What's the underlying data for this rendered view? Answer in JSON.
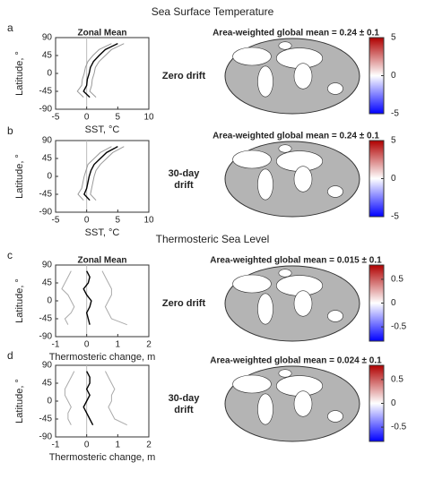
{
  "chart_data": [
    {
      "type": "line",
      "panel": "a",
      "supertitle": "Sea Surface Temperature",
      "title": "Zonal Mean",
      "xlabel": "SST, °C",
      "ylabel": "Latitude, °",
      "latitudes": [
        -60,
        -45,
        -30,
        -15,
        0,
        15,
        30,
        45,
        60,
        75
      ],
      "xlim": [
        -5,
        10
      ],
      "xticks": [
        -5,
        0,
        5,
        10
      ],
      "ylim": [
        -90,
        90
      ],
      "yticks": [
        90,
        45,
        0,
        -45,
        -90
      ],
      "series": [
        {
          "color": "#999999",
          "values": [
            1.5,
            0.5,
            0.8,
            0.9,
            1.2,
            1.4,
            2,
            3,
            4,
            6
          ]
        },
        {
          "color": "#000000",
          "values": [
            0.5,
            -0.5,
            0,
            0.1,
            0.4,
            0.6,
            1.1,
            2,
            3,
            5
          ]
        },
        {
          "color": "#999999",
          "values": [
            -0.5,
            -1.5,
            -0.8,
            -0.7,
            -0.4,
            -0.2,
            0.2,
            1,
            2,
            4
          ]
        }
      ]
    },
    {
      "type": "map",
      "title": "Area-weighted global mean = 0.24 ± 0.1",
      "label": [
        "Zero drift"
      ],
      "clim": [
        -5,
        5
      ],
      "cticks": [
        5,
        0,
        -5
      ],
      "colors": [
        "#0000ff",
        "#ffffff",
        "#b00000"
      ]
    },
    {
      "type": "line",
      "panel": "b",
      "title": "",
      "xlabel": "SST, °C",
      "ylabel": "Latitude, °",
      "latitudes": [
        -60,
        -45,
        -30,
        -15,
        0,
        15,
        30,
        45,
        60,
        75
      ],
      "xlim": [
        -5,
        10
      ],
      "xticks": [
        -5,
        0,
        5,
        10
      ],
      "ylim": [
        -90,
        90
      ],
      "yticks": [
        90,
        45,
        0,
        -45,
        -90
      ],
      "series": [
        {
          "color": "#999999",
          "values": [
            1.5,
            0.6,
            0.8,
            1,
            1.2,
            1.5,
            2.2,
            3.2,
            4.2,
            6
          ]
        },
        {
          "color": "#000000",
          "values": [
            0.5,
            -0.4,
            0,
            0.2,
            0.4,
            0.7,
            1.2,
            2.2,
            3.2,
            5
          ]
        },
        {
          "color": "#999999",
          "values": [
            -0.5,
            -1.4,
            -0.8,
            -0.6,
            -0.4,
            -0.1,
            0.2,
            1.2,
            2.2,
            4
          ]
        }
      ]
    },
    {
      "type": "map",
      "title": "Area-weighted global mean = 0.24 ± 0.1",
      "label": [
        "30-day",
        "drift"
      ],
      "clim": [
        -5,
        5
      ],
      "cticks": [
        5,
        0,
        -5
      ],
      "colors": [
        "#0000ff",
        "#ffffff",
        "#b00000"
      ]
    },
    {
      "type": "line",
      "panel": "c",
      "supertitle": "Thermosteric Sea Level",
      "title": "Zonal Mean",
      "xlabel": "Thermosteric change, m",
      "ylabel": "Latitude, °",
      "latitudes": [
        -60,
        -45,
        -30,
        -15,
        0,
        15,
        30,
        45,
        60,
        75
      ],
      "xlim": [
        -1,
        2
      ],
      "xticks": [
        -1,
        0,
        1,
        2
      ],
      "ylim": [
        -90,
        90
      ],
      "yticks": [
        90,
        45,
        0,
        -45,
        -90
      ],
      "series": [
        {
          "color": "#aaaaaa",
          "values": [
            1.3,
            0.8,
            0.7,
            0.6,
            0.7,
            0.8,
            0.8,
            0.7,
            0.6,
            0.5
          ]
        },
        {
          "color": "#000000",
          "values": [
            0.1,
            0.05,
            0,
            0.1,
            0.15,
            0,
            -0.1,
            0.05,
            0.1,
            0
          ]
        },
        {
          "color": "#aaaaaa",
          "values": [
            -0.6,
            -0.7,
            -0.5,
            -0.4,
            -0.5,
            -0.6,
            -0.8,
            -0.7,
            -0.6,
            -0.5
          ]
        }
      ]
    },
    {
      "type": "map",
      "title": "Area-weighted global mean = 0.015 ± 0.1",
      "label": [
        "Zero drift"
      ],
      "clim": [
        -0.8,
        0.8
      ],
      "cticks": [
        0.5,
        0,
        -0.5
      ],
      "colors": [
        "#0000ff",
        "#ffffff",
        "#b00000"
      ]
    },
    {
      "type": "line",
      "panel": "d",
      "title": "",
      "xlabel": "Thermosteric change, m",
      "ylabel": "Latitude, °",
      "latitudes": [
        -60,
        -45,
        -30,
        -15,
        0,
        15,
        30,
        45,
        60,
        75
      ],
      "xlim": [
        -1,
        2
      ],
      "xticks": [
        -1,
        0,
        1,
        2
      ],
      "ylim": [
        -90,
        90
      ],
      "yticks": [
        90,
        45,
        0,
        -45,
        -90
      ],
      "series": [
        {
          "color": "#aaaaaa",
          "values": [
            1.3,
            0.9,
            0.8,
            0.7,
            0.8,
            0.8,
            0.9,
            0.8,
            0.7,
            0.6
          ]
        },
        {
          "color": "#000000",
          "values": [
            0.2,
            0.1,
            0,
            -0.1,
            0,
            0.1,
            0,
            0.1,
            0.1,
            0
          ]
        },
        {
          "color": "#aaaaaa",
          "values": [
            -0.5,
            -0.6,
            -0.6,
            -0.5,
            -0.6,
            -0.7,
            -0.7,
            -0.6,
            -0.5,
            -0.4
          ]
        }
      ]
    },
    {
      "type": "map",
      "title": "Area-weighted global mean = 0.024 ± 0.1",
      "label": [
        "30-day",
        "drift"
      ],
      "clim": [
        -0.8,
        0.8
      ],
      "cticks": [
        0.5,
        0,
        -0.5
      ],
      "colors": [
        "#0000ff",
        "#ffffff",
        "#b00000"
      ]
    }
  ]
}
